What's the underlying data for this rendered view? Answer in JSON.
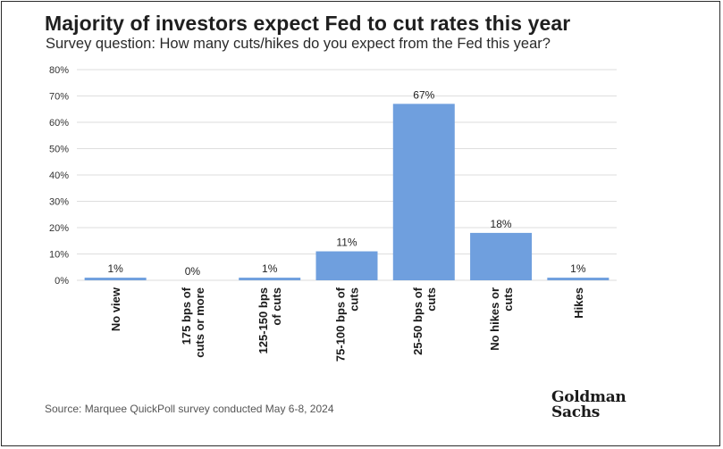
{
  "colors": {
    "bar": "#6f9fde",
    "grid": "#dedede",
    "text": "#222222"
  },
  "title": "Majority of investors expect Fed to cut rates this year",
  "subtitle": "Survey question: How many cuts/hikes do you expect from the Fed this year?",
  "source": "Source: Marquee QuickPoll survey conducted May 6-8, 2024",
  "logo": {
    "line1": "Goldman",
    "line2": "Sachs"
  },
  "chart_data": {
    "type": "bar",
    "categories": [
      [
        "No view"
      ],
      [
        "175 bps of",
        "cuts or more"
      ],
      [
        "125-150 bps",
        "of cuts"
      ],
      [
        "75-100 bps of",
        "cuts"
      ],
      [
        "25-50 bps of",
        "cuts"
      ],
      [
        "No hikes or",
        "cuts"
      ],
      [
        "Hikes"
      ]
    ],
    "values": [
      1,
      0,
      1,
      11,
      67,
      18,
      1
    ],
    "value_labels": [
      "1%",
      "0%",
      "1%",
      "11%",
      "67%",
      "18%",
      "1%"
    ],
    "yticks": [
      0,
      10,
      20,
      30,
      40,
      50,
      60,
      70,
      80
    ],
    "ytick_labels": [
      "0%",
      "10%",
      "20%",
      "30%",
      "40%",
      "50%",
      "60%",
      "70%",
      "80%"
    ],
    "ylim": [
      0,
      80
    ],
    "grid": true
  }
}
